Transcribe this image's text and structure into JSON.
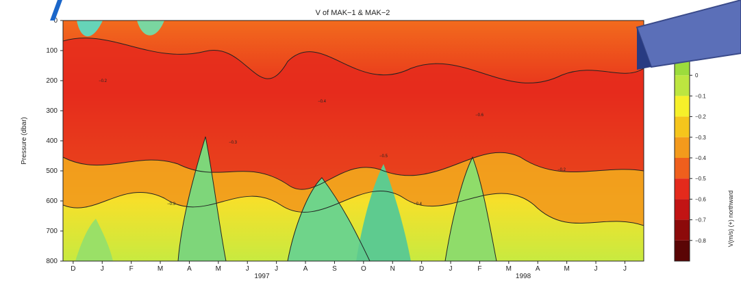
{
  "chart_data": {
    "type": "heatmap",
    "title": "V of MAK−1 & MAK−2",
    "ylabel": "Pressure (dbar)",
    "y_ticks": [
      0,
      100,
      200,
      300,
      400,
      500,
      600,
      700,
      800
    ],
    "ylim": [
      800,
      0
    ],
    "x_months": [
      "D",
      "J",
      "F",
      "M",
      "A",
      "M",
      "J",
      "J",
      "A",
      "S",
      "O",
      "N",
      "D",
      "J",
      "F",
      "M",
      "A",
      "M",
      "J",
      "J"
    ],
    "x_years": [
      {
        "label": "1997",
        "month_index": 6.5
      },
      {
        "label": "1998",
        "month_index": 15.5
      }
    ],
    "colorbar": {
      "label": "V(m/s) (+) northward",
      "ticks": [
        "0",
        "−0.1",
        "−0.2",
        "−0.3",
        "−0.4",
        "−0.5",
        "−0.6",
        "−0.7",
        "−0.8"
      ],
      "colors": [
        "#9cdc3c",
        "#bde640",
        "#f6f02a",
        "#f5c51c",
        "#f39a1c",
        "#ef5f1d",
        "#e42a1c",
        "#c21414",
        "#8c0a0a",
        "#5a0505"
      ]
    },
    "contour_labels": [
      "−0.2",
      "−0.3",
      "−0.4",
      "−0.5",
      "−0.6"
    ],
    "grid": false,
    "legend": "colorbar-right"
  }
}
